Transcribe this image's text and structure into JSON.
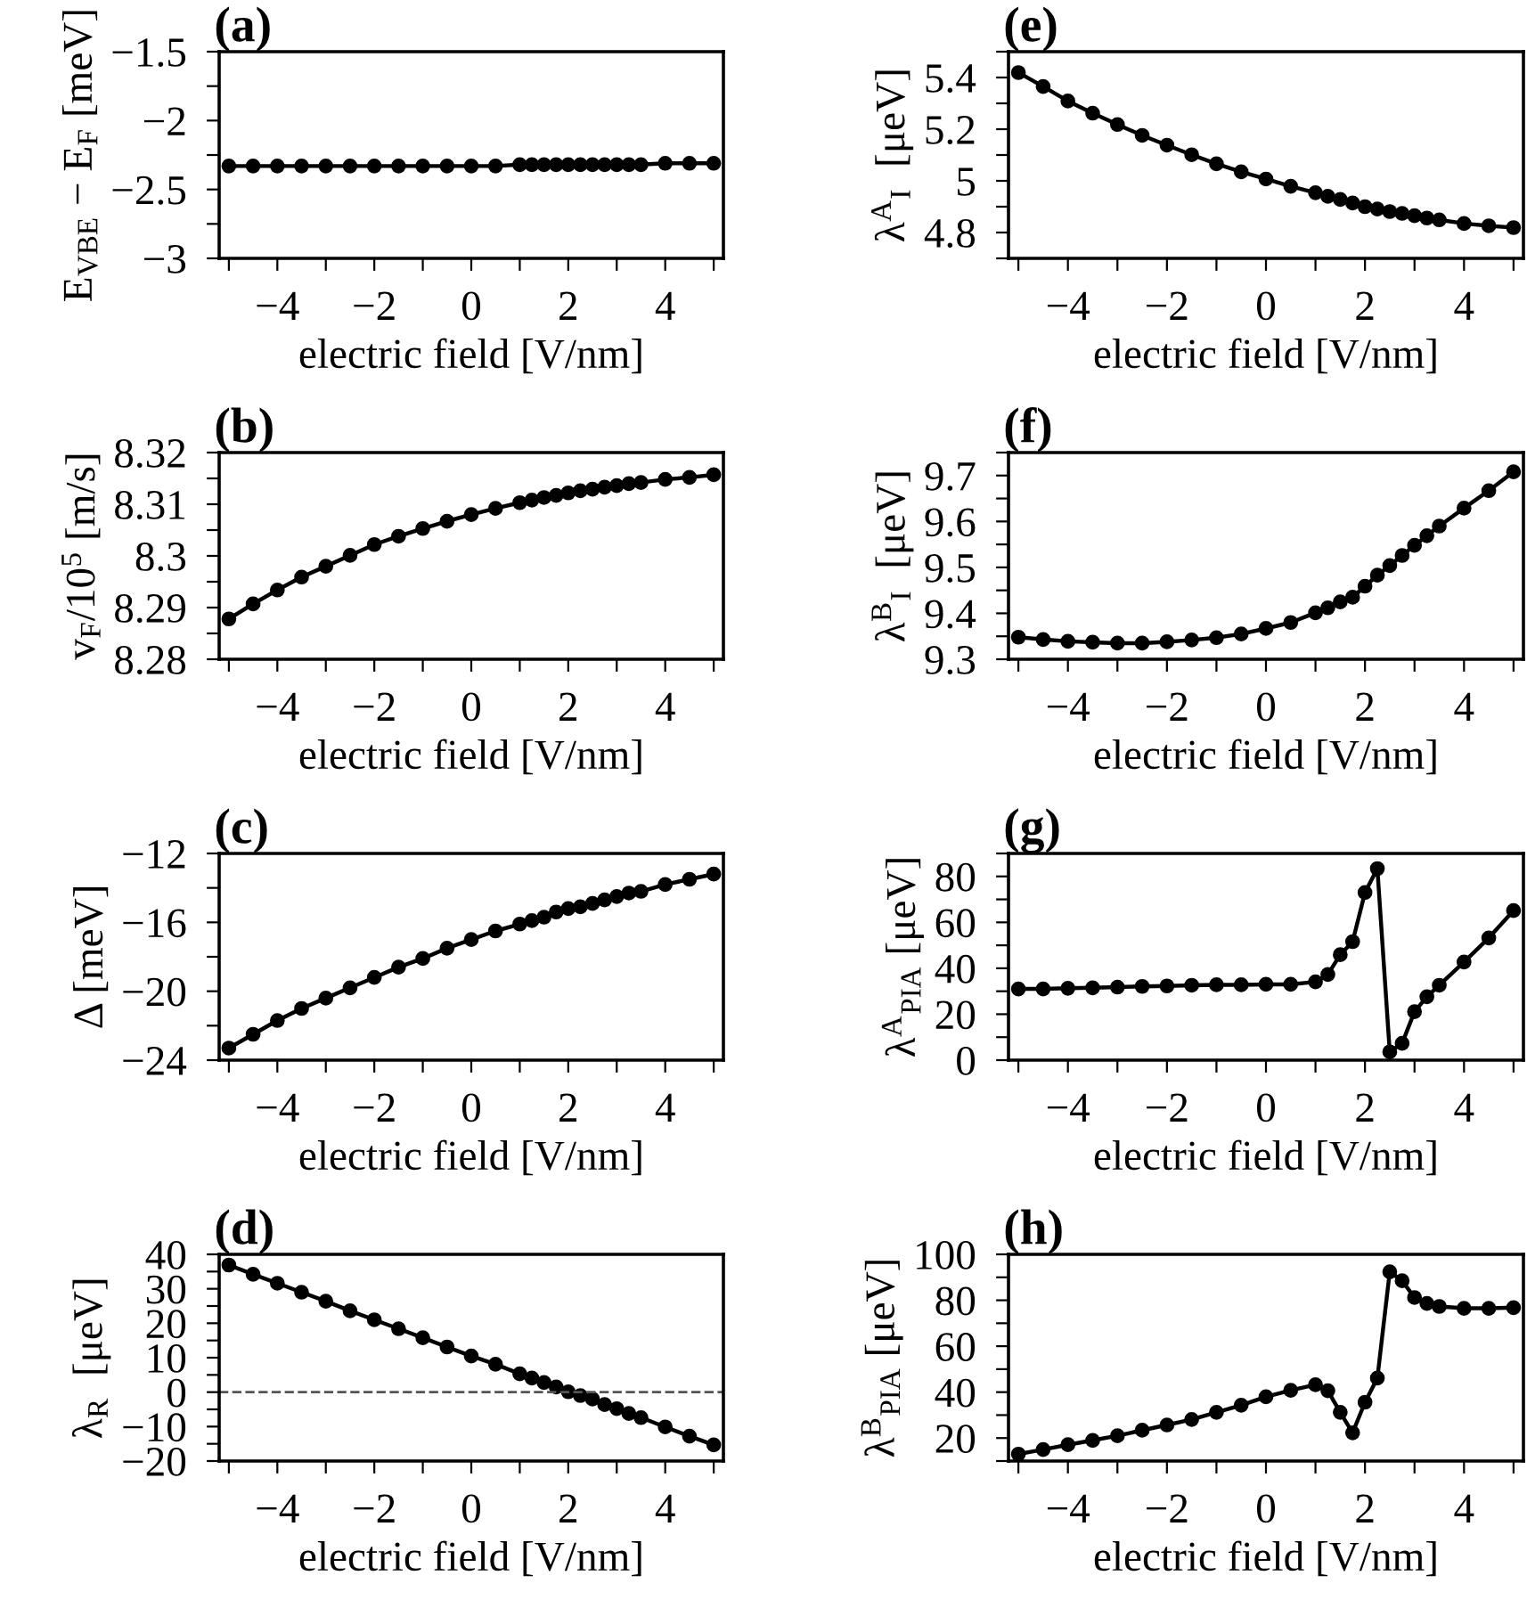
{
  "chart_data": [
    {
      "type": "line",
      "title": "(a)",
      "xlabel": "electric field [V/nm]",
      "ylabel": "E$_{VBE}$ − E$_{F}$ [meV]",
      "marker": "circle",
      "line_style": "solid",
      "grid": false,
      "legend": false,
      "x": [
        -5,
        -4.5,
        -4,
        -3.5,
        -3,
        -2.5,
        -2,
        -1.5,
        -1,
        -0.5,
        0,
        0.5,
        1,
        1.25,
        1.5,
        1.75,
        2,
        2.25,
        2.5,
        2.75,
        3,
        3.25,
        3.5,
        4,
        4.5,
        5
      ],
      "series": [
        {
          "color": "#000000",
          "values": [
            -2.33,
            -2.33,
            -2.33,
            -2.33,
            -2.33,
            -2.33,
            -2.33,
            -2.33,
            -2.33,
            -2.33,
            -2.33,
            -2.33,
            -2.32,
            -2.32,
            -2.32,
            -2.32,
            -2.32,
            -2.32,
            -2.32,
            -2.32,
            -2.32,
            -2.32,
            -2.32,
            -2.31,
            -2.31,
            -2.31
          ]
        }
      ],
      "xlim": [
        -5.2,
        5.2
      ],
      "xticks": [
        {
          "value": -5,
          "label": null
        },
        -4,
        {
          "value": -3,
          "label": null
        },
        -2,
        {
          "value": -1,
          "label": null
        },
        0,
        {
          "value": 1,
          "label": null
        },
        2,
        {
          "value": 3,
          "label": null
        },
        4,
        {
          "value": 5,
          "label": null
        }
      ],
      "ylim": [
        -3,
        -1.5
      ],
      "yticks": [
        {
          "value": -3,
          "label": "−3"
        },
        {
          "value": -2.75,
          "label": null
        },
        {
          "value": -2.5,
          "label": "−2.5"
        },
        {
          "value": -2.25,
          "label": null
        },
        {
          "value": -2,
          "label": "−2"
        },
        {
          "value": -1.75,
          "label": null
        },
        {
          "value": -1.5,
          "label": "−1.5"
        }
      ]
    },
    {
      "type": "line",
      "title": "(b)",
      "xlabel": "electric field [V/nm]",
      "ylabel": "v$_{F}$/10$^{5}$ [m/s]",
      "marker": "circle",
      "line_style": "solid",
      "grid": false,
      "legend": false,
      "x": [
        -5,
        -4.5,
        -4,
        -3.5,
        -3,
        -2.5,
        -2,
        -1.5,
        -1,
        -0.5,
        0,
        0.5,
        1,
        1.25,
        1.5,
        1.75,
        2,
        2.25,
        2.5,
        2.75,
        3,
        3.25,
        3.5,
        4,
        4.5,
        5
      ],
      "series": [
        {
          "color": "#000000",
          "values": [
            8.2878,
            8.2907,
            8.2934,
            8.2959,
            8.298,
            8.3001,
            8.3022,
            8.3038,
            8.3053,
            8.3067,
            8.308,
            8.3092,
            8.3103,
            8.3108,
            8.3113,
            8.3117,
            8.3122,
            8.3126,
            8.3129,
            8.3133,
            8.3136,
            8.314,
            8.3142,
            8.3148,
            8.3152,
            8.3157
          ]
        }
      ],
      "xlim": [
        -5.2,
        5.2
      ],
      "xticks": [
        {
          "value": -5,
          "label": null
        },
        -4,
        {
          "value": -3,
          "label": null
        },
        -2,
        {
          "value": -1,
          "label": null
        },
        0,
        {
          "value": 1,
          "label": null
        },
        2,
        {
          "value": 3,
          "label": null
        },
        4,
        {
          "value": 5,
          "label": null
        }
      ],
      "ylim": [
        8.28,
        8.32
      ],
      "yticks": [
        8.28,
        {
          "value": 8.285,
          "label": null
        },
        8.29,
        {
          "value": 8.295,
          "label": null
        },
        8.3,
        {
          "value": 8.305,
          "label": null
        },
        8.31,
        {
          "value": 8.315,
          "label": null
        },
        8.32
      ]
    },
    {
      "type": "line",
      "title": "(c)",
      "xlabel": "electric field [V/nm]",
      "ylabel": "Δ [meV]",
      "marker": "circle",
      "line_style": "solid",
      "grid": false,
      "legend": false,
      "x": [
        -5,
        -4.5,
        -4,
        -3.5,
        -3,
        -2.5,
        -2,
        -1.5,
        -1,
        -0.5,
        0,
        0.5,
        1,
        1.25,
        1.5,
        1.75,
        2,
        2.25,
        2.5,
        2.75,
        3,
        3.25,
        3.5,
        4,
        4.5,
        5
      ],
      "series": [
        {
          "color": "#000000",
          "values": [
            -23.3,
            -22.5,
            -21.7,
            -21.0,
            -20.4,
            -19.8,
            -19.2,
            -18.6,
            -18.1,
            -17.5,
            -17.0,
            -16.5,
            -16.1,
            -15.9,
            -15.7,
            -15.4,
            -15.2,
            -15.1,
            -14.9,
            -14.7,
            -14.5,
            -14.3,
            -14.2,
            -13.8,
            -13.5,
            -13.2
          ]
        }
      ],
      "xlim": [
        -5.2,
        5.2
      ],
      "xticks": [
        {
          "value": -5,
          "label": null
        },
        -4,
        {
          "value": -3,
          "label": null
        },
        -2,
        {
          "value": -1,
          "label": null
        },
        0,
        {
          "value": 1,
          "label": null
        },
        2,
        {
          "value": 3,
          "label": null
        },
        4,
        {
          "value": 5,
          "label": null
        }
      ],
      "ylim": [
        -24,
        -12
      ],
      "yticks": [
        {
          "value": -24,
          "label": "−24"
        },
        {
          "value": -22,
          "label": null
        },
        {
          "value": -20,
          "label": "−20"
        },
        {
          "value": -18,
          "label": null
        },
        {
          "value": -16,
          "label": "−16"
        },
        {
          "value": -14,
          "label": null
        },
        {
          "value": -12,
          "label": "−12"
        }
      ]
    },
    {
      "type": "line",
      "title": "(d)",
      "xlabel": "electric field [V/nm]",
      "ylabel": "λ$_{R}$  [μeV]",
      "marker": "circle",
      "line_style": "solid",
      "grid": false,
      "legend": false,
      "x": [
        -5,
        -4.5,
        -4,
        -3.5,
        -3,
        -2.5,
        -2,
        -1.5,
        -1,
        -0.5,
        0,
        0.5,
        1,
        1.25,
        1.5,
        1.75,
        2,
        2.25,
        2.5,
        2.75,
        3,
        3.25,
        3.5,
        4,
        4.5,
        5
      ],
      "series": [
        {
          "color": "#000000",
          "values": [
            36.9,
            34.2,
            31.6,
            29.0,
            26.4,
            23.6,
            21.0,
            18.4,
            15.8,
            13.1,
            10.5,
            8.1,
            5.3,
            4.1,
            2.8,
            1.5,
            0.1,
            -1.0,
            -2.0,
            -3.6,
            -4.8,
            -6.2,
            -7.4,
            -10.1,
            -12.8,
            -15.3
          ]
        }
      ],
      "ref_lines": [
        {
          "axis": "y",
          "value": 0,
          "color": "#555555",
          "line_style": "dashed"
        }
      ],
      "xlim": [
        -5.2,
        5.2
      ],
      "xticks": [
        {
          "value": -5,
          "label": null
        },
        -4,
        {
          "value": -3,
          "label": null
        },
        -2,
        {
          "value": -1,
          "label": null
        },
        0,
        {
          "value": 1,
          "label": null
        },
        2,
        {
          "value": 3,
          "label": null
        },
        4,
        {
          "value": 5,
          "label": null
        }
      ],
      "ylim": [
        -20,
        40
      ],
      "yticks": [
        {
          "value": -20,
          "label": "−20"
        },
        {
          "value": -15,
          "label": null
        },
        {
          "value": -10,
          "label": "−10"
        },
        {
          "value": -5,
          "label": null
        },
        0,
        {
          "value": 5,
          "label": null
        },
        10,
        {
          "value": 15,
          "label": null
        },
        20,
        {
          "value": 25,
          "label": null
        },
        30,
        {
          "value": 35,
          "label": null
        },
        40
      ]
    },
    {
      "type": "line",
      "title": "(e)",
      "xlabel": "electric field [V/nm]",
      "ylabel": "λ$^{A}$$_{I}$  [μeV]",
      "marker": "circle",
      "line_style": "solid",
      "grid": false,
      "legend": false,
      "x": [
        -5,
        -4.5,
        -4,
        -3.5,
        -3,
        -2.5,
        -2,
        -1.5,
        -1,
        -0.5,
        0,
        0.5,
        1,
        1.25,
        1.5,
        1.75,
        2,
        2.25,
        2.5,
        2.75,
        3,
        3.25,
        3.5,
        4,
        4.5,
        5
      ],
      "series": [
        {
          "color": "#000000",
          "values": [
            5.419,
            5.365,
            5.309,
            5.262,
            5.218,
            5.176,
            5.138,
            5.101,
            5.066,
            5.035,
            5.007,
            4.979,
            4.954,
            4.94,
            4.928,
            4.914,
            4.9,
            4.891,
            4.881,
            4.874,
            4.865,
            4.856,
            4.849,
            4.835,
            4.826,
            4.819
          ]
        }
      ],
      "xlim": [
        -5.2,
        5.2
      ],
      "xticks": [
        {
          "value": -5,
          "label": null
        },
        -4,
        {
          "value": -3,
          "label": null
        },
        -2,
        {
          "value": -1,
          "label": null
        },
        0,
        {
          "value": 1,
          "label": null
        },
        2,
        {
          "value": 3,
          "label": null
        },
        4,
        {
          "value": 5,
          "label": null
        }
      ],
      "ylim": [
        4.7,
        5.5
      ],
      "yticks": [
        {
          "value": 4.7,
          "label": null
        },
        4.8,
        {
          "value": 4.9,
          "label": null
        },
        5,
        {
          "value": 5.1,
          "label": null
        },
        5.2,
        {
          "value": 5.3,
          "label": null
        },
        5.4,
        {
          "value": 5.5,
          "label": null
        }
      ]
    },
    {
      "type": "line",
      "title": "(f)",
      "xlabel": "electric field [V/nm]",
      "ylabel": "λ$^{B}$$_{I}$  [μeV]",
      "marker": "circle",
      "line_style": "solid",
      "grid": false,
      "legend": false,
      "x": [
        -5,
        -4.5,
        -4,
        -3.5,
        -3,
        -2.5,
        -2,
        -1.5,
        -1,
        -0.5,
        0,
        0.5,
        1,
        1.25,
        1.5,
        1.75,
        2,
        2.25,
        2.5,
        2.75,
        3,
        3.25,
        3.5,
        4,
        4.5,
        5
      ],
      "series": [
        {
          "color": "#000000",
          "values": [
            9.348,
            9.343,
            9.339,
            9.337,
            9.335,
            9.335,
            9.338,
            9.342,
            9.347,
            9.355,
            9.367,
            9.38,
            9.401,
            9.412,
            9.425,
            9.435,
            9.459,
            9.483,
            9.504,
            9.526,
            9.548,
            9.569,
            9.59,
            9.629,
            9.667,
            9.708
          ]
        }
      ],
      "xlim": [
        -5.2,
        5.2
      ],
      "xticks": [
        {
          "value": -5,
          "label": null
        },
        -4,
        {
          "value": -3,
          "label": null
        },
        -2,
        {
          "value": -1,
          "label": null
        },
        0,
        {
          "value": 1,
          "label": null
        },
        2,
        {
          "value": 3,
          "label": null
        },
        4,
        {
          "value": 5,
          "label": null
        }
      ],
      "ylim": [
        9.3,
        9.75
      ],
      "yticks": [
        9.3,
        {
          "value": 9.35,
          "label": null
        },
        9.4,
        {
          "value": 9.45,
          "label": null
        },
        9.5,
        {
          "value": 9.55,
          "label": null
        },
        9.6,
        {
          "value": 9.65,
          "label": null
        },
        9.7,
        {
          "value": 9.75,
          "label": null
        }
      ]
    },
    {
      "type": "line",
      "title": "(g)",
      "xlabel": "electric field [V/nm]",
      "ylabel": "λ$^{A}$$_{PIA}$ [μeV]",
      "marker": "circle",
      "line_style": "solid",
      "grid": false,
      "legend": false,
      "x": [
        -5,
        -4.5,
        -4,
        -3.5,
        -3,
        -2.5,
        -2,
        -1.5,
        -1,
        -0.5,
        0,
        0.5,
        1,
        1.25,
        1.5,
        1.75,
        2,
        2.25,
        2.5,
        2.75,
        3,
        3.25,
        3.5,
        4,
        4.5,
        5
      ],
      "series": [
        {
          "color": "#000000",
          "values": [
            31.0,
            31.0,
            31.3,
            31.5,
            31.8,
            32.1,
            32.3,
            32.6,
            32.8,
            32.8,
            33.0,
            33.0,
            34.1,
            37.3,
            45.9,
            51.6,
            73.0,
            83.4,
            3.6,
            7.3,
            21.1,
            27.6,
            32.6,
            42.7,
            53.2,
            65.1
          ]
        }
      ],
      "xlim": [
        -5.2,
        5.2
      ],
      "xticks": [
        {
          "value": -5,
          "label": null
        },
        -4,
        {
          "value": -3,
          "label": null
        },
        -2,
        {
          "value": -1,
          "label": null
        },
        0,
        {
          "value": 1,
          "label": null
        },
        2,
        {
          "value": 3,
          "label": null
        },
        4,
        {
          "value": 5,
          "label": null
        }
      ],
      "ylim": [
        0,
        90
      ],
      "yticks": [
        0,
        {
          "value": 10,
          "label": null
        },
        20,
        {
          "value": 30,
          "label": null
        },
        40,
        {
          "value": 50,
          "label": null
        },
        60,
        {
          "value": 70,
          "label": null
        },
        80,
        {
          "value": 90,
          "label": null
        }
      ]
    },
    {
      "type": "line",
      "title": "(h)",
      "xlabel": "electric field [V/nm]",
      "ylabel": "λ$^{B}$$_{PIA}$ [μeV]",
      "marker": "circle",
      "line_style": "solid",
      "grid": false,
      "legend": false,
      "x": [
        -5,
        -4.5,
        -4,
        -3.5,
        -3,
        -2.5,
        -2,
        -1.5,
        -1,
        -0.5,
        0,
        0.5,
        1,
        1.25,
        1.5,
        1.75,
        2,
        2.25,
        2.5,
        2.75,
        3,
        3.25,
        3.5,
        4,
        4.5,
        5
      ],
      "series": [
        {
          "color": "#000000",
          "values": [
            13.0,
            15.0,
            17.1,
            19.0,
            21.0,
            23.4,
            25.7,
            28.1,
            31.2,
            34.3,
            38.0,
            40.8,
            43.2,
            40.6,
            31.2,
            22.3,
            35.6,
            46.1,
            92.4,
            88.5,
            81.2,
            78.6,
            77.3,
            76.5,
            76.5,
            76.8
          ]
        }
      ],
      "xlim": [
        -5.2,
        5.2
      ],
      "xticks": [
        {
          "value": -5,
          "label": null
        },
        -4,
        {
          "value": -3,
          "label": null
        },
        -2,
        {
          "value": -1,
          "label": null
        },
        0,
        {
          "value": 1,
          "label": null
        },
        2,
        {
          "value": 3,
          "label": null
        },
        4,
        {
          "value": 5,
          "label": null
        }
      ],
      "ylim": [
        10,
        100
      ],
      "yticks": [
        {
          "value": 10,
          "label": null
        },
        20,
        {
          "value": 30,
          "label": null
        },
        40,
        {
          "value": 50,
          "label": null
        },
        60,
        {
          "value": 70,
          "label": null
        },
        80,
        {
          "value": 90,
          "label": null
        },
        100
      ]
    }
  ]
}
